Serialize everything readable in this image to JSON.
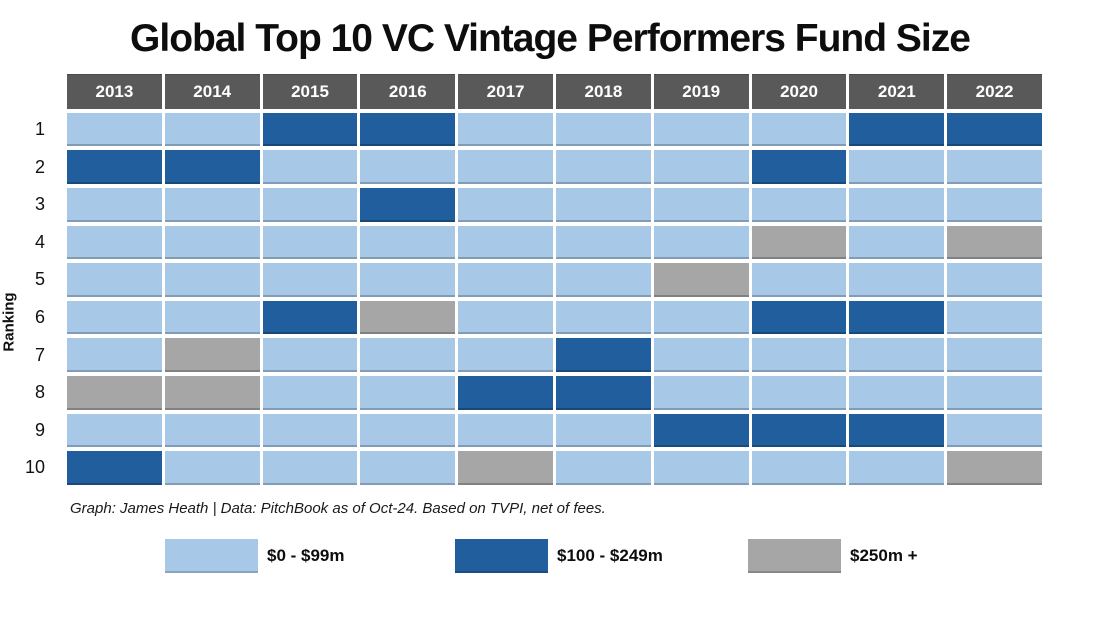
{
  "title": "Global Top 10 VC Vintage Performers Fund Size",
  "y_axis_label": "Ranking",
  "footnote": "Graph: James Heath | Data: PitchBook as of Oct-24. Based on TVPI, net of fees.",
  "colors": {
    "background": "#FFFFFF",
    "header_bg": "#595959",
    "header_text": "#FFFFFF",
    "low": "#A8C8E8",
    "mid": "#215E9D",
    "high": "#A6A6A6"
  },
  "legend": [
    {
      "key": "low",
      "label": "$0 - $99m",
      "color": "#A8C8E8"
    },
    {
      "key": "mid",
      "label": "$100 - $249m",
      "color": "#215E9D"
    },
    {
      "key": "high",
      "label": "$250m +",
      "color": "#A6A6A6"
    }
  ],
  "chart_data": {
    "type": "heatmap",
    "title": "Global Top 10 VC Vintage Performers Fund Size",
    "x_categories": [
      "2013",
      "2014",
      "2015",
      "2016",
      "2017",
      "2018",
      "2019",
      "2020",
      "2021",
      "2022"
    ],
    "y_categories": [
      "1",
      "2",
      "3",
      "4",
      "5",
      "6",
      "7",
      "8",
      "9",
      "10"
    ],
    "ylabel": "Ranking",
    "value_legend": {
      "low": "$0 - $99m",
      "mid": "$100 - $249m",
      "high": "$250m +"
    },
    "values": [
      [
        "low",
        "low",
        "mid",
        "mid",
        "low",
        "low",
        "low",
        "low",
        "mid",
        "mid"
      ],
      [
        "mid",
        "mid",
        "low",
        "low",
        "low",
        "low",
        "low",
        "mid",
        "low",
        "low"
      ],
      [
        "low",
        "low",
        "low",
        "mid",
        "low",
        "low",
        "low",
        "low",
        "low",
        "low"
      ],
      [
        "low",
        "low",
        "low",
        "low",
        "low",
        "low",
        "low",
        "high",
        "low",
        "high"
      ],
      [
        "low",
        "low",
        "low",
        "low",
        "low",
        "low",
        "high",
        "low",
        "low",
        "low"
      ],
      [
        "low",
        "low",
        "mid",
        "high",
        "low",
        "low",
        "low",
        "mid",
        "mid",
        "low"
      ],
      [
        "low",
        "high",
        "low",
        "low",
        "low",
        "mid",
        "low",
        "low",
        "low",
        "low"
      ],
      [
        "high",
        "high",
        "low",
        "low",
        "mid",
        "mid",
        "low",
        "low",
        "low",
        "low"
      ],
      [
        "low",
        "low",
        "low",
        "low",
        "low",
        "low",
        "mid",
        "mid",
        "mid",
        "low"
      ],
      [
        "mid",
        "low",
        "low",
        "low",
        "high",
        "low",
        "low",
        "low",
        "low",
        "high"
      ]
    ]
  }
}
